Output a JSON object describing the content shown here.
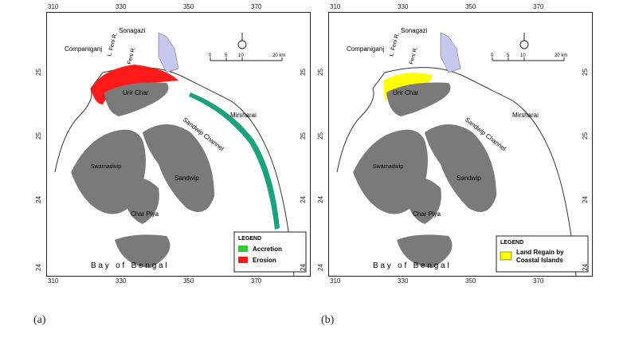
{
  "panels": [
    {
      "id": "a",
      "label": "(a)",
      "x_ticks": [
        "310",
        "330",
        "350",
        "370"
      ],
      "y_ticks_left": [
        "25",
        "25",
        "24",
        "24"
      ],
      "y_ticks_right": [
        "25",
        "25",
        "24",
        "24"
      ],
      "places": {
        "sonagazi": "Sonagazi",
        "companiganj": "Companiganj",
        "urir_char": "Urir Char",
        "mirsharai": "Mirsharai",
        "sandwip_channel": "Sandwip Channel",
        "swarnadwip": "Swarnadwip",
        "sandwip": "Sandwip",
        "char_piya": "Char Piya",
        "bay_of_bengal": "B a y   o f   B e n g a l",
        "feni_r1": "L. Feni R.",
        "feni_r2": "Feni R."
      },
      "scale": {
        "t0": "0",
        "t1": "5",
        "t2": "10",
        "t3": "20 km"
      },
      "legend": {
        "title": "LEGEND",
        "items": [
          {
            "label": "Accretion",
            "color": "#33cc33"
          },
          {
            "label": "Erosion",
            "color": "#ff1a1a"
          }
        ]
      }
    },
    {
      "id": "b",
      "label": "(b)",
      "x_ticks": [
        "310",
        "330",
        "350",
        "370"
      ],
      "y_ticks_left": [
        "25",
        "25",
        "24",
        "24"
      ],
      "y_ticks_right": [
        "25",
        "25",
        "24",
        "24"
      ],
      "places": {
        "sonagazi": "Sonagazi",
        "companiganj": "Companiganj",
        "urir_char": "Urir Char",
        "mirsharai": "Mirsharai",
        "sandwip_channel": "Sandwip Channel",
        "swarnadwip": "Swarnadwip",
        "sandwip": "Sandwip",
        "char_piya": "Char Piya",
        "bay_of_bengal": "B a y   o f   B e n g a l",
        "feni_r1": "L. Feni R.",
        "feni_r2": "Feni R."
      },
      "scale": {
        "t0": "0",
        "t1": "5",
        "t2": "10",
        "t3": "20 km"
      },
      "legend": {
        "title": "LEGEND",
        "items": [
          {
            "label": "Land Regain by Coastal Islands",
            "color": "#ffff00"
          }
        ]
      }
    }
  ],
  "colors": {
    "island": "#7a7a7a",
    "river_fill": "#c6c8ee",
    "coast_line": "#333333",
    "erosion": "#ff1a1a",
    "accretion_band": "#1aa37a",
    "land_regain": "#ffff00"
  },
  "north_arrow_icon": "north-arrow-icon"
}
